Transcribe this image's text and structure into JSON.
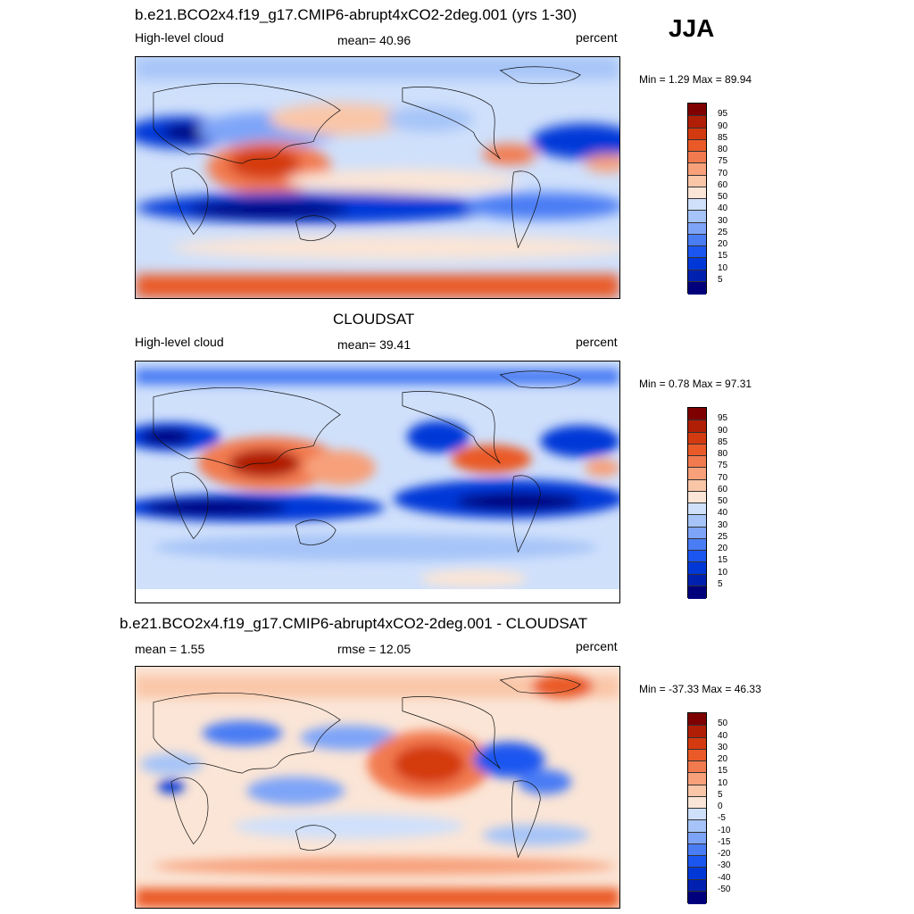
{
  "season": "JJA",
  "colors": {
    "seq": [
      "#00007d",
      "#0020b0",
      "#0038d8",
      "#1c56f0",
      "#4a7cf4",
      "#7ea4f8",
      "#a6c4f8",
      "#cfe0fb",
      "#fbe5d6",
      "#fac6a8",
      "#f7a07a",
      "#f27a4f",
      "#ea5a28",
      "#d43a10",
      "#b01e05",
      "#7e0000"
    ],
    "div": [
      "#00007d",
      "#0020b0",
      "#0038d8",
      "#1c56f0",
      "#4a7cf4",
      "#7ea4f8",
      "#a6c4f8",
      "#cfe0fb",
      "#fbe5d6",
      "#fac6a8",
      "#f7a07a",
      "#f27a4f",
      "#ea5a28",
      "#d43a10",
      "#b01e05",
      "#7e0000"
    ]
  },
  "chart_data": [
    {
      "type": "heatmap",
      "title": "b.e21.BCO2x4.f19_g17.CMIP6-abrupt4xCO2-2deg.001 (yrs 1-30)",
      "left_label": "High-level cloud",
      "center_label": "mean=  40.96",
      "units": "percent",
      "minmax": "Min =   1.29 Max =  89.94",
      "levels": [
        "5",
        "10",
        "15",
        "20",
        "25",
        "30",
        "40",
        "50",
        "60",
        "70",
        "75",
        "80",
        "85",
        "90",
        "95"
      ]
    },
    {
      "type": "heatmap",
      "title": "CLOUDSAT",
      "left_label": "High-level cloud",
      "center_label": "mean=  39.41",
      "units": "percent",
      "minmax": "Min =   0.78 Max =  97.31",
      "levels": [
        "5",
        "10",
        "15",
        "20",
        "25",
        "30",
        "40",
        "50",
        "60",
        "70",
        "75",
        "80",
        "85",
        "90",
        "95"
      ]
    },
    {
      "type": "heatmap",
      "title": "b.e21.BCO2x4.f19_g17.CMIP6-abrupt4xCO2-2deg.001 - CLOUDSAT",
      "left_label": "mean =   1.55",
      "center_label": "rmse =  12.05",
      "units": "percent",
      "minmax": "Min = -37.33 Max =  46.33",
      "levels": [
        "-50",
        "-40",
        "-30",
        "-20",
        "-15",
        "-10",
        "-5",
        "0",
        "5",
        "10",
        "15",
        "20",
        "30",
        "40",
        "50"
      ]
    }
  ]
}
